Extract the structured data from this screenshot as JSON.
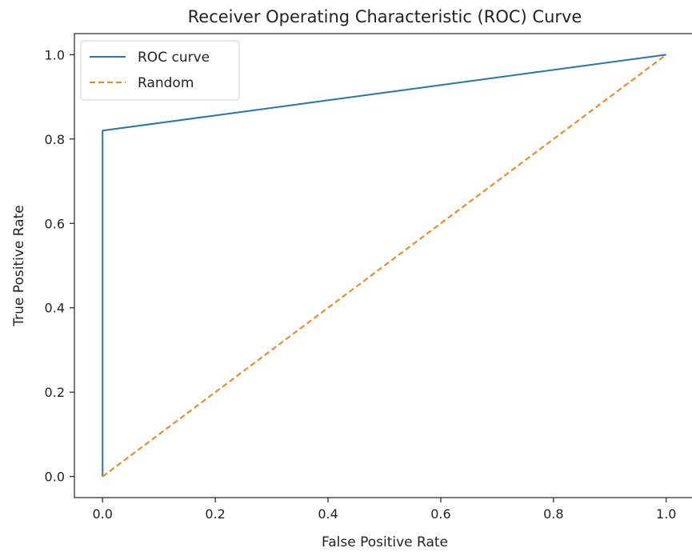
{
  "chart_data": {
    "type": "line",
    "title": "Receiver Operating Characteristic (ROC) Curve",
    "xlabel": "False Positive Rate",
    "ylabel": "True Positive Rate",
    "xlim": [
      -0.05,
      1.05
    ],
    "ylim": [
      -0.05,
      1.05
    ],
    "xticks": [
      "0.0",
      "0.2",
      "0.4",
      "0.6",
      "0.8",
      "1.0"
    ],
    "yticks": [
      "0.0",
      "0.2",
      "0.4",
      "0.6",
      "0.8",
      "1.0"
    ],
    "grid": false,
    "legend_position": "top-left",
    "series": [
      {
        "name": "ROC curve",
        "style": "solid",
        "color": "#1f77b4",
        "x": [
          0.0,
          0.0,
          1.0
        ],
        "y": [
          0.0,
          0.82,
          1.0
        ]
      },
      {
        "name": "Random",
        "style": "dashed",
        "color": "#ff7f0e",
        "x": [
          0.0,
          1.0
        ],
        "y": [
          0.0,
          1.0
        ]
      }
    ]
  }
}
